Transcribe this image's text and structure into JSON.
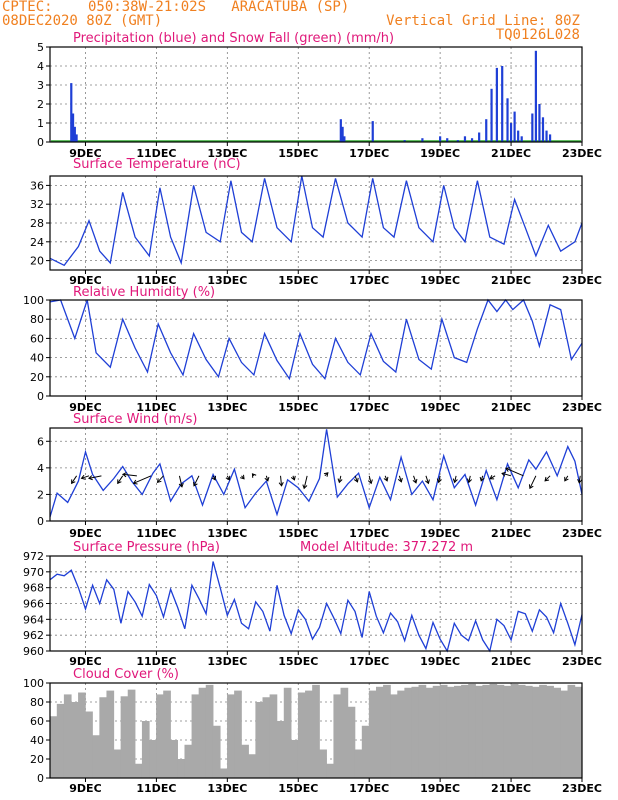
{
  "header": {
    "source": "CPTEC:",
    "location": "050:38W-21:02S   ARACATUBA (SP)",
    "run": "08DEC2020 80Z (GMT)",
    "grid_note": "Vertical Grid Line: 80Z",
    "model_code": "TQ0126L028"
  },
  "colors": {
    "header": "#f08020",
    "title": "#e0187a",
    "line": "#1f3fd6",
    "snow": "#2eaa2e",
    "cloud": "#a9a9a9"
  },
  "chart_data": [
    {
      "type": "bar",
      "title": "Precipitation (blue) and Snow Fall (green) (mm/h)",
      "x_tick_labels": [
        "9DEC",
        "11DEC",
        "13DEC",
        "15DEC",
        "17DEC",
        "19DEC",
        "21DEC",
        "23DEC"
      ],
      "x_range_days": [
        8.0,
        23.0
      ],
      "ylim": [
        0,
        5
      ],
      "yticks": [
        0,
        1,
        2,
        3,
        4,
        5
      ],
      "grid": true,
      "series": [
        {
          "name": "Precipitation",
          "x": [
            8.6,
            8.65,
            8.7,
            8.75,
            16.2,
            16.25,
            16.3,
            17.1,
            18.0,
            18.5,
            19.0,
            19.2,
            19.5,
            19.7,
            19.9,
            20.1,
            20.3,
            20.45,
            20.6,
            20.75,
            20.9,
            21.0,
            21.1,
            21.2,
            21.3,
            21.6,
            21.7,
            21.8,
            21.9,
            22.0,
            22.1
          ],
          "values": [
            3.1,
            1.5,
            0.8,
            0.4,
            1.2,
            0.8,
            0.3,
            1.1,
            0.1,
            0.2,
            0.3,
            0.2,
            0.1,
            0.3,
            0.2,
            0.5,
            1.2,
            2.8,
            3.9,
            4.0,
            2.3,
            1.0,
            1.6,
            0.6,
            0.3,
            1.5,
            4.8,
            2.0,
            1.3,
            0.6,
            0.4
          ]
        }
      ]
    },
    {
      "type": "line",
      "title": "Surface Temperature (nC)",
      "x_tick_labels": [
        "9DEC",
        "11DEC",
        "13DEC",
        "15DEC",
        "17DEC",
        "19DEC",
        "21DEC",
        "23DEC"
      ],
      "x_range_days": [
        8.0,
        23.0
      ],
      "ylim": [
        18,
        38
      ],
      "yticks": [
        20,
        24,
        28,
        32,
        36
      ],
      "grid": true,
      "series": [
        {
          "name": "Surface Temperature",
          "x": [
            8.0,
            8.4,
            8.8,
            9.1,
            9.4,
            9.7,
            10.05,
            10.4,
            10.8,
            11.1,
            11.4,
            11.7,
            12.05,
            12.4,
            12.8,
            13.1,
            13.4,
            13.7,
            14.05,
            14.4,
            14.8,
            15.1,
            15.4,
            15.7,
            16.05,
            16.4,
            16.8,
            17.1,
            17.4,
            17.7,
            18.05,
            18.4,
            18.8,
            19.1,
            19.4,
            19.7,
            20.05,
            20.4,
            20.8,
            21.1,
            21.4,
            21.7,
            22.05,
            22.4,
            22.8,
            23.0
          ],
          "values": [
            20.5,
            19,
            23,
            28.5,
            22,
            19.5,
            34.5,
            25,
            21,
            35.5,
            25,
            19.5,
            36,
            26,
            24,
            37,
            26,
            24,
            37.5,
            27,
            24,
            38,
            27,
            25,
            37.5,
            28,
            25,
            37.5,
            27,
            25,
            37,
            27,
            24,
            36,
            27,
            24,
            37,
            25,
            23.5,
            33,
            27,
            21,
            27.5,
            22,
            24,
            28
          ]
        }
      ]
    },
    {
      "type": "line",
      "title": "Relative Humidity (%)",
      "x_tick_labels": [
        "9DEC",
        "11DEC",
        "13DEC",
        "15DEC",
        "17DEC",
        "19DEC",
        "21DEC",
        "23DEC"
      ],
      "x_range_days": [
        8.0,
        23.0
      ],
      "ylim": [
        0,
        100
      ],
      "yticks": [
        0,
        20,
        40,
        60,
        80,
        100
      ],
      "grid": true,
      "series": [
        {
          "name": "Relative Humidity",
          "x": [
            8.0,
            8.3,
            8.7,
            9.05,
            9.3,
            9.7,
            10.05,
            10.4,
            10.75,
            11.05,
            11.4,
            11.75,
            12.05,
            12.4,
            12.75,
            13.05,
            13.4,
            13.75,
            14.05,
            14.4,
            14.75,
            15.05,
            15.4,
            15.75,
            16.05,
            16.4,
            16.75,
            17.05,
            17.4,
            17.75,
            18.05,
            18.4,
            18.75,
            19.05,
            19.4,
            19.75,
            20.05,
            20.35,
            20.6,
            20.85,
            21.05,
            21.35,
            21.6,
            21.8,
            22.1,
            22.4,
            22.7,
            23.0
          ],
          "values": [
            98,
            100,
            60,
            100,
            45,
            30,
            80,
            50,
            25,
            75,
            45,
            22,
            65,
            38,
            20,
            60,
            35,
            22,
            65,
            37,
            18,
            65,
            33,
            18,
            60,
            35,
            22,
            65,
            36,
            25,
            80,
            38,
            28,
            80,
            40,
            35,
            70,
            100,
            88,
            100,
            90,
            100,
            78,
            52,
            95,
            90,
            38,
            55
          ]
        }
      ]
    },
    {
      "type": "line",
      "title": "Surface Wind (m/s)",
      "x_tick_labels": [
        "9DEC",
        "11DEC",
        "13DEC",
        "15DEC",
        "17DEC",
        "19DEC",
        "21DEC",
        "23DEC"
      ],
      "x_range_days": [
        8.0,
        23.0
      ],
      "ylim": [
        0,
        7
      ],
      "yticks": [
        0,
        2,
        4,
        6
      ],
      "grid": true,
      "series": [
        {
          "name": "Surface Wind",
          "x": [
            8.0,
            8.2,
            8.5,
            8.8,
            9.0,
            9.2,
            9.5,
            9.8,
            10.05,
            10.3,
            10.6,
            10.9,
            11.1,
            11.4,
            11.7,
            12.0,
            12.3,
            12.6,
            12.9,
            13.2,
            13.5,
            13.8,
            14.1,
            14.4,
            14.7,
            15.0,
            15.3,
            15.6,
            15.8,
            16.1,
            16.4,
            16.7,
            17.0,
            17.3,
            17.6,
            17.9,
            18.2,
            18.5,
            18.8,
            19.1,
            19.4,
            19.7,
            20.0,
            20.3,
            20.6,
            20.9,
            21.2,
            21.5,
            21.7,
            22.0,
            22.3,
            22.6,
            22.8,
            23.0
          ],
          "values": [
            0.3,
            2.1,
            1.4,
            3.0,
            5.2,
            3.5,
            2.3,
            3.2,
            4.1,
            3.0,
            2.0,
            3.6,
            4.3,
            1.5,
            2.8,
            3.4,
            1.2,
            3.5,
            2.0,
            3.9,
            1.0,
            2.1,
            3.0,
            0.5,
            3.1,
            2.5,
            1.5,
            3.2,
            6.9,
            1.8,
            2.8,
            3.6,
            1.0,
            3.3,
            1.6,
            4.8,
            2.0,
            3.0,
            1.6,
            4.9,
            2.5,
            3.5,
            1.2,
            3.8,
            1.6,
            4.3,
            2.5,
            4.6,
            3.9,
            5.2,
            3.4,
            5.6,
            4.5,
            2.0
          ]
        }
      ],
      "vectors": [
        {
          "x": 8.75,
          "u": -1,
          "v": -1.5
        },
        {
          "x": 9.1,
          "u": -1.5,
          "v": -0.5
        },
        {
          "x": 9.45,
          "u": -2.5,
          "v": -0.5
        },
        {
          "x": 10.05,
          "u": -1,
          "v": -1.5
        },
        {
          "x": 10.45,
          "u": -2.8,
          "v": 0.3
        },
        {
          "x": 10.85,
          "u": -3.5,
          "v": -1.5
        },
        {
          "x": 11.2,
          "u": -1.2,
          "v": -1.3
        },
        {
          "x": 11.65,
          "u": 0.5,
          "v": -2.2
        },
        {
          "x": 12.2,
          "u": -1,
          "v": -2
        },
        {
          "x": 12.6,
          "u": 0.4,
          "v": -0.8
        },
        {
          "x": 13.0,
          "u": 0.4,
          "v": -0.8
        },
        {
          "x": 13.4,
          "u": 0.5,
          "v": -0.6
        },
        {
          "x": 13.75,
          "u": -0.3,
          "v": 0.4
        },
        {
          "x": 14.1,
          "u": 0.3,
          "v": -1
        },
        {
          "x": 14.5,
          "u": 0.2,
          "v": -2
        },
        {
          "x": 14.85,
          "u": 0.3,
          "v": -0.8
        },
        {
          "x": 15.25,
          "u": -0.6,
          "v": -2.5
        },
        {
          "x": 15.75,
          "u": 0.6,
          "v": 0.6
        },
        {
          "x": 16.2,
          "u": -0.3,
          "v": -1.3
        },
        {
          "x": 16.6,
          "u": 0.5,
          "v": -1.2
        },
        {
          "x": 17.0,
          "u": 0.4,
          "v": -1.5
        },
        {
          "x": 17.45,
          "u": 0.4,
          "v": -1
        },
        {
          "x": 17.85,
          "u": 0.4,
          "v": -1.2
        },
        {
          "x": 18.25,
          "u": 0.5,
          "v": -1.4
        },
        {
          "x": 18.6,
          "u": 0.5,
          "v": -1.5
        },
        {
          "x": 19.0,
          "u": -0.3,
          "v": -1.3
        },
        {
          "x": 19.45,
          "u": -0.3,
          "v": -1.3
        },
        {
          "x": 19.85,
          "u": -0.3,
          "v": -1.3
        },
        {
          "x": 20.2,
          "u": -0.3,
          "v": -1
        },
        {
          "x": 20.55,
          "u": -1,
          "v": -0.6
        },
        {
          "x": 21.0,
          "u": -1.8,
          "v": 0.5
        },
        {
          "x": 21.35,
          "u": -3.5,
          "v": 1.5
        },
        {
          "x": 21.7,
          "u": -1.2,
          "v": -2.5
        },
        {
          "x": 22.1,
          "u": -1,
          "v": -1
        },
        {
          "x": 22.6,
          "u": -0.6,
          "v": -1
        },
        {
          "x": 22.95,
          "u": -0.2,
          "v": -1.4
        }
      ]
    },
    {
      "type": "line",
      "title": "Surface Pressure (hPa)",
      "subtitle": "Model Altitude: 377.272 m",
      "x_tick_labels": [
        "9DEC",
        "11DEC",
        "13DEC",
        "15DEC",
        "17DEC",
        "19DEC",
        "21DEC",
        "23DEC"
      ],
      "x_range_days": [
        8.0,
        23.0
      ],
      "ylim": [
        960,
        972
      ],
      "yticks": [
        960,
        962,
        964,
        966,
        968,
        970,
        972
      ],
      "grid": true,
      "series": [
        {
          "name": "Surface Pressure",
          "x": [
            8.0,
            8.2,
            8.4,
            8.6,
            8.8,
            9.0,
            9.2,
            9.4,
            9.6,
            9.8,
            10.0,
            10.2,
            10.4,
            10.6,
            10.8,
            11.0,
            11.2,
            11.4,
            11.6,
            11.8,
            12.0,
            12.2,
            12.4,
            12.6,
            12.8,
            13.0,
            13.2,
            13.4,
            13.6,
            13.8,
            14.0,
            14.2,
            14.4,
            14.6,
            14.8,
            15.0,
            15.2,
            15.4,
            15.6,
            15.8,
            16.0,
            16.2,
            16.4,
            16.6,
            16.8,
            17.0,
            17.2,
            17.4,
            17.6,
            17.8,
            18.0,
            18.2,
            18.4,
            18.6,
            18.8,
            19.0,
            19.2,
            19.4,
            19.6,
            19.8,
            20.0,
            20.2,
            20.4,
            20.6,
            20.8,
            21.0,
            21.2,
            21.4,
            21.6,
            21.8,
            22.0,
            22.2,
            22.4,
            22.6,
            22.8,
            23.0
          ],
          "values": [
            969,
            969.7,
            969.5,
            970.2,
            968,
            965.3,
            968.3,
            966,
            969,
            967.8,
            963.5,
            967.5,
            966.2,
            964.4,
            968.4,
            967,
            964.3,
            967.8,
            965.5,
            962.8,
            968.3,
            966.6,
            964.7,
            971.3,
            968,
            964.5,
            966.5,
            963.5,
            962.8,
            966.2,
            965,
            962.5,
            968.3,
            964.5,
            962.2,
            965.2,
            964,
            961.5,
            963,
            966,
            964.2,
            962.2,
            966.4,
            965,
            961.7,
            967.5,
            964.4,
            962.3,
            964.8,
            963.7,
            961.3,
            964.5,
            962,
            960.3,
            963.6,
            961.5,
            959.8,
            963.5,
            962,
            961.3,
            963.8,
            961.4,
            959.5,
            964,
            963.2,
            961.4,
            965,
            964.7,
            962.5,
            965.2,
            964.3,
            962.3,
            966,
            963.5,
            960.8,
            964.6
          ]
        }
      ]
    },
    {
      "type": "bar",
      "title": "Cloud Cover (%)",
      "x_tick_labels": [
        "9DEC",
        "11DEC",
        "13DEC",
        "15DEC",
        "17DEC",
        "19DEC",
        "21DEC",
        "23DEC"
      ],
      "x_range_days": [
        8.0,
        23.0
      ],
      "ylim": [
        0,
        100
      ],
      "yticks": [
        0,
        20,
        40,
        60,
        80,
        100
      ],
      "grid": true,
      "series": [
        {
          "name": "Cloud Cover",
          "x": [
            8.1,
            8.3,
            8.5,
            8.7,
            8.9,
            9.1,
            9.3,
            9.5,
            9.7,
            9.9,
            10.1,
            10.3,
            10.5,
            10.7,
            10.9,
            11.1,
            11.3,
            11.5,
            11.7,
            11.9,
            12.1,
            12.3,
            12.5,
            12.7,
            12.9,
            13.1,
            13.3,
            13.5,
            13.7,
            13.9,
            14.1,
            14.3,
            14.5,
            14.7,
            14.9,
            15.1,
            15.3,
            15.5,
            15.7,
            15.9,
            16.1,
            16.3,
            16.5,
            16.7,
            16.9,
            17.1,
            17.3,
            17.5,
            17.7,
            17.9,
            18.1,
            18.3,
            18.5,
            18.7,
            18.9,
            19.1,
            19.3,
            19.5,
            19.7,
            19.9,
            20.1,
            20.3,
            20.5,
            20.7,
            20.9,
            21.1,
            21.3,
            21.5,
            21.7,
            21.9,
            22.1,
            22.3,
            22.5,
            22.7,
            22.9
          ],
          "values": [
            65,
            78,
            88,
            80,
            90,
            70,
            45,
            85,
            92,
            30,
            86,
            93,
            15,
            60,
            40,
            88,
            92,
            40,
            20,
            35,
            88,
            95,
            98,
            55,
            10,
            88,
            92,
            35,
            25,
            80,
            85,
            88,
            60,
            95,
            40,
            90,
            92,
            98,
            30,
            15,
            88,
            95,
            75,
            30,
            55,
            92,
            96,
            98,
            88,
            92,
            95,
            96,
            98,
            95,
            97,
            98,
            96,
            97,
            98,
            99,
            97,
            98,
            99,
            98,
            97,
            99,
            98,
            97,
            96,
            98,
            97,
            95,
            92,
            98,
            96
          ]
        }
      ]
    }
  ]
}
